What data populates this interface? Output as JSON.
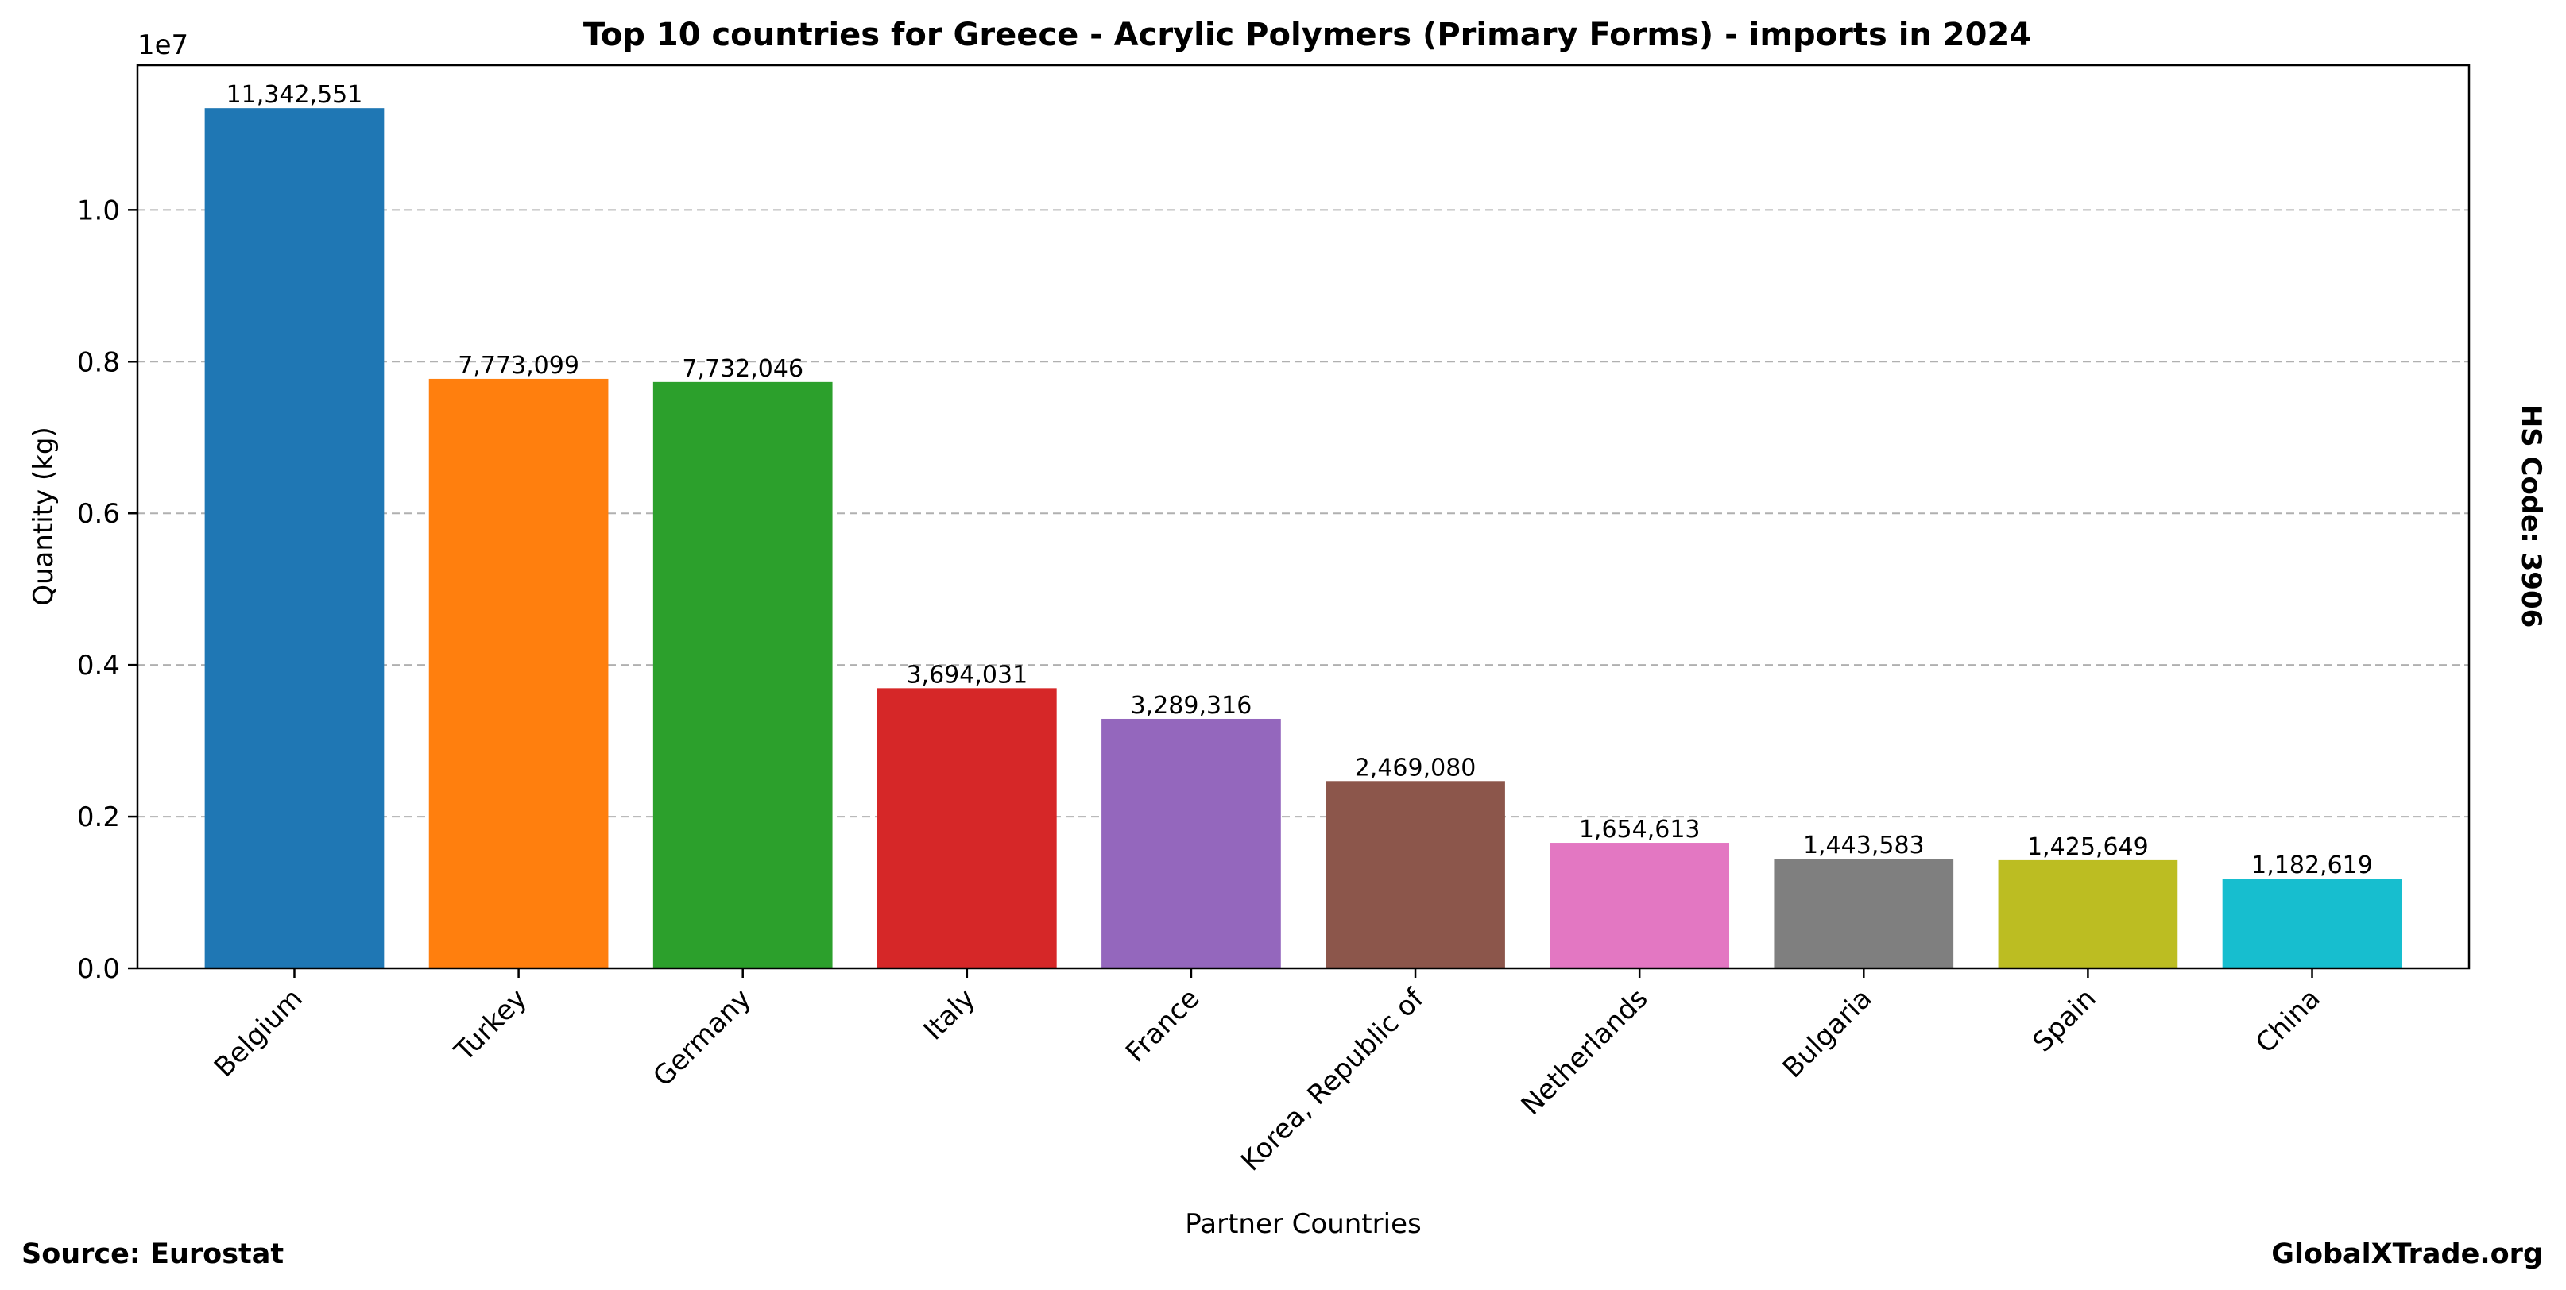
{
  "chart_data": {
    "type": "bar",
    "title": "Top 10 countries for Greece - Acrylic Polymers (Primary Forms) - imports in 2024",
    "xlabel": "Partner Countries",
    "ylabel": "Quantity (kg)",
    "y_scale_label": "1e7",
    "categories": [
      "Belgium",
      "Turkey",
      "Germany",
      "Italy",
      "France",
      "Korea, Republic of",
      "Netherlands",
      "Bulgaria",
      "Spain",
      "China"
    ],
    "values": [
      11342551,
      7773099,
      7732046,
      3694031,
      3289316,
      2469080,
      1654613,
      1443583,
      1425649,
      1182619
    ],
    "value_labels": [
      "11,342,551",
      "7,773,099",
      "7,732,046",
      "3,694,031",
      "3,289,316",
      "2,469,080",
      "1,654,613",
      "1,443,583",
      "1,425,649",
      "1,182,619"
    ],
    "colors": [
      "#1f77b4",
      "#ff7f0e",
      "#2ca02c",
      "#d62728",
      "#9467bd",
      "#8c564b",
      "#e377c2",
      "#7f7f7f",
      "#bcbd22",
      "#17becf"
    ],
    "ylim": [
      0,
      11910000
    ],
    "yticks": [
      0,
      2000000,
      4000000,
      6000000,
      8000000,
      10000000
    ],
    "ytick_labels": [
      "0.0",
      "0.2",
      "0.4",
      "0.6",
      "0.8",
      "1.0"
    ],
    "grid": "y-dashed",
    "legend": "none"
  },
  "footer": {
    "source": "Source: Eurostat",
    "brand": "GlobalXTrade.org",
    "hs_code": "HS Code: 3906"
  }
}
